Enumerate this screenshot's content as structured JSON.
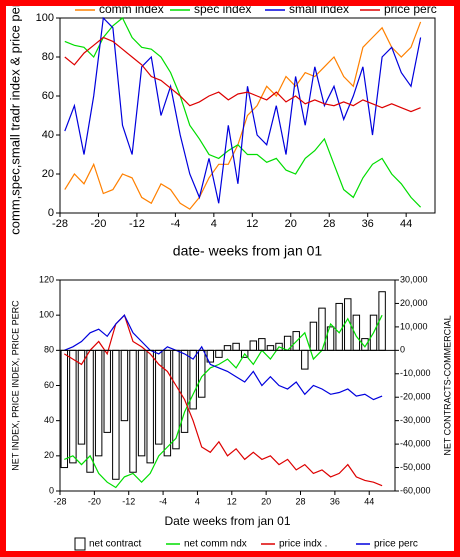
{
  "chart_data": [
    {
      "type": "line",
      "y_label": "comm,spec,small tradr index & price perc",
      "x_label": "date- weeks from jan 01",
      "x": [
        -27,
        -25,
        -23,
        -21,
        -19,
        -17,
        -15,
        -13,
        -11,
        -9,
        -7,
        -5,
        -3,
        -1,
        1,
        3,
        5,
        7,
        9,
        11,
        13,
        15,
        17,
        19,
        21,
        23,
        25,
        27,
        29,
        31,
        33,
        35,
        37,
        39,
        41,
        43,
        45,
        47
      ],
      "xlim": [
        -28,
        50
      ],
      "xticks": [
        -28,
        -20,
        -12,
        -4,
        4,
        12,
        20,
        28,
        36,
        44
      ],
      "ylim": [
        0,
        100
      ],
      "yticks": [
        0,
        20,
        40,
        60,
        80,
        100
      ],
      "series": [
        {
          "name": "comm index",
          "color": "#ff8000",
          "values": [
            12,
            20,
            15,
            25,
            10,
            12,
            20,
            18,
            8,
            5,
            15,
            12,
            5,
            2,
            8,
            18,
            25,
            25,
            35,
            50,
            55,
            65,
            60,
            70,
            65,
            72,
            70,
            75,
            80,
            70,
            65,
            85,
            90,
            95,
            85,
            80,
            85,
            98
          ]
        },
        {
          "name": "spec index",
          "color": "#00dd00",
          "values": [
            88,
            86,
            85,
            80,
            90,
            96,
            100,
            90,
            85,
            84,
            80,
            72,
            60,
            45,
            38,
            30,
            28,
            32,
            35,
            30,
            30,
            26,
            28,
            22,
            20,
            28,
            32,
            38,
            25,
            12,
            8,
            18,
            25,
            28,
            20,
            15,
            8,
            3
          ]
        },
        {
          "name": "small index",
          "color": "#0000dd",
          "values": [
            42,
            55,
            30,
            60,
            100,
            95,
            45,
            30,
            75,
            80,
            50,
            65,
            40,
            20,
            8,
            28,
            5,
            45,
            15,
            65,
            40,
            35,
            55,
            30,
            70,
            45,
            75,
            55,
            65,
            48,
            60,
            75,
            40,
            80,
            85,
            72,
            65,
            90
          ]
        },
        {
          "name": "price perc",
          "color": "#dd0000",
          "values": [
            80,
            76,
            82,
            86,
            90,
            88,
            84,
            80,
            76,
            70,
            68,
            64,
            60,
            55,
            57,
            60,
            62,
            58,
            61,
            62,
            60,
            58,
            62,
            57,
            60,
            56,
            58,
            56,
            55,
            57,
            55,
            58,
            56,
            54,
            56,
            54,
            52,
            54
          ]
        }
      ]
    },
    {
      "type": "combo",
      "y_label": "NET INDEX, PRICE INDEX, PRICE PERC",
      "y2_label": "NET CONTRACTS-COMMERCIAL",
      "x_label": "Date weeks from jan 01",
      "x": [
        -27,
        -25,
        -23,
        -21,
        -19,
        -17,
        -15,
        -13,
        -11,
        -9,
        -7,
        -5,
        -3,
        -1,
        1,
        3,
        5,
        7,
        9,
        11,
        13,
        15,
        17,
        19,
        21,
        23,
        25,
        27,
        29,
        31,
        33,
        35,
        37,
        39,
        41,
        43,
        45,
        47
      ],
      "xlim": [
        -28,
        50
      ],
      "xticks": [
        -28,
        -20,
        -12,
        -4,
        4,
        12,
        20,
        28,
        36,
        44
      ],
      "ylim": [
        0,
        120
      ],
      "yticks": [
        0,
        20,
        40,
        60,
        80,
        100,
        120
      ],
      "y2lim": [
        -60000,
        30000
      ],
      "y2ticks": [
        {
          "value": -60000,
          "label": "-60,000"
        },
        {
          "value": -50000,
          "label": "-50,000"
        },
        {
          "value": -40000,
          "label": "-40,000"
        },
        {
          "value": -30000,
          "label": "-30,000"
        },
        {
          "value": -20000,
          "label": "-20,000"
        },
        {
          "value": -10000,
          "label": "-10,000"
        },
        0,
        {
          "value": 10000,
          "label": "10,000"
        },
        {
          "value": 20000,
          "label": "20,000"
        },
        {
          "value": 30000,
          "label": "30,000"
        }
      ],
      "series": [
        {
          "name": "net contract",
          "type": "bar",
          "axis": "y2",
          "color": "#000000",
          "values": [
            -50000,
            -48000,
            -40000,
            -52000,
            -45000,
            -35000,
            -55000,
            -30000,
            -52000,
            -45000,
            -48000,
            -40000,
            -45000,
            -42000,
            -35000,
            -25000,
            -20000,
            -5000,
            -3000,
            2000,
            3000,
            -3000,
            4000,
            5000,
            2000,
            3000,
            6000,
            8000,
            -8000,
            12000,
            18000,
            10000,
            20000,
            22000,
            15000,
            5000,
            15000,
            25000
          ]
        },
        {
          "name": "net comm ndx",
          "type": "line",
          "color": "#00dd00",
          "values": [
            18,
            20,
            15,
            20,
            10,
            5,
            2,
            8,
            10,
            5,
            10,
            20,
            25,
            30,
            45,
            55,
            65,
            70,
            72,
            75,
            70,
            78,
            72,
            80,
            75,
            82,
            80,
            85,
            90,
            75,
            80,
            95,
            90,
            98,
            88,
            82,
            90,
            100
          ]
        },
        {
          "name": "price indx .",
          "type": "line",
          "color": "#dd0000",
          "values": [
            78,
            75,
            72,
            80,
            85,
            78,
            95,
            100,
            85,
            82,
            78,
            72,
            68,
            60,
            52,
            40,
            25,
            22,
            28,
            20,
            24,
            18,
            22,
            18,
            20,
            15,
            18,
            12,
            15,
            10,
            12,
            8,
            10,
            15,
            8,
            6,
            5,
            3
          ]
        },
        {
          "name": "price perc",
          "type": "line",
          "color": "#0000dd",
          "values": [
            80,
            82,
            85,
            90,
            92,
            88,
            95,
            100,
            90,
            85,
            80,
            78,
            82,
            80,
            78,
            75,
            82,
            72,
            70,
            68,
            65,
            62,
            68,
            60,
            65,
            60,
            58,
            62,
            55,
            60,
            58,
            55,
            56,
            58,
            54,
            55,
            52,
            54
          ]
        }
      ]
    }
  ]
}
